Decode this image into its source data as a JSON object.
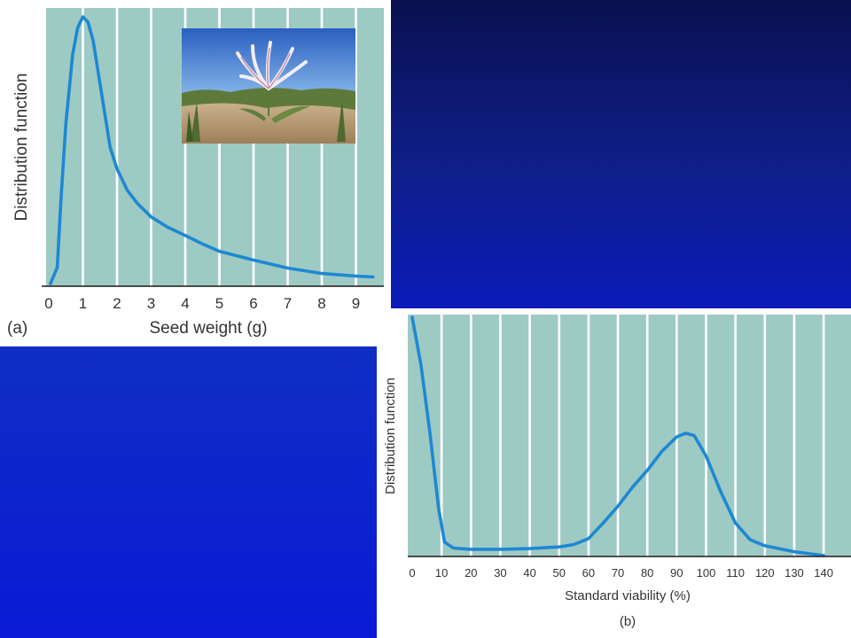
{
  "chart_data": [
    {
      "type": "line",
      "panel_label": "(a)",
      "xlabel": "Seed weight (g)",
      "ylabel": "Distribution function",
      "xticks": [
        "0",
        "1",
        "2",
        "3",
        "4",
        "5",
        "6",
        "7",
        "8",
        "9"
      ],
      "xlim": [
        0,
        9.6
      ],
      "ylim": [
        0,
        1
      ],
      "grid": "vertical",
      "x": [
        0.05,
        0.25,
        0.35,
        0.5,
        0.7,
        0.85,
        1.0,
        1.15,
        1.3,
        1.5,
        1.8,
        2.0,
        2.3,
        2.6,
        3.0,
        3.5,
        4.0,
        4.5,
        5.0,
        6.0,
        7.0,
        8.0,
        9.0,
        9.5
      ],
      "y": [
        0.0,
        0.06,
        0.3,
        0.6,
        0.86,
        0.96,
        1.0,
        0.98,
        0.91,
        0.75,
        0.51,
        0.43,
        0.35,
        0.3,
        0.25,
        0.21,
        0.18,
        0.149,
        0.121,
        0.088,
        0.058,
        0.038,
        0.028,
        0.025
      ],
      "inset_image": "lily-flower-photo"
    },
    {
      "type": "line",
      "panel_label": "(b)",
      "xlabel": "Standard viability (%)",
      "ylabel": "Distribution function",
      "xticks": [
        "0",
        "10",
        "20",
        "30",
        "40",
        "50",
        "60",
        "70",
        "80",
        "90",
        "100",
        "110",
        "120",
        "130",
        "140"
      ],
      "xlim": [
        0,
        148
      ],
      "ylim": [
        0,
        1
      ],
      "grid": "vertical",
      "x": [
        0,
        3,
        6,
        9,
        11,
        14,
        20,
        30,
        40,
        50,
        55,
        60,
        65,
        70,
        75,
        80,
        85,
        90,
        93,
        96,
        100,
        105,
        110,
        115,
        120,
        130,
        140
      ],
      "y": [
        1.0,
        0.8,
        0.52,
        0.2,
        0.06,
        0.035,
        0.03,
        0.03,
        0.033,
        0.04,
        0.05,
        0.075,
        0.14,
        0.21,
        0.29,
        0.36,
        0.44,
        0.5,
        0.515,
        0.505,
        0.42,
        0.27,
        0.14,
        0.07,
        0.045,
        0.02,
        0.004
      ]
    }
  ]
}
